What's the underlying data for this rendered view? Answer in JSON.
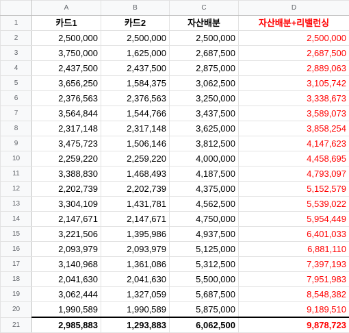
{
  "columns": [
    "A",
    "B",
    "C",
    "D"
  ],
  "headers": [
    "카드1",
    "카드2",
    "자산배분",
    "자산배분+리밸런싱"
  ],
  "colors": {
    "rebalance_text": "#ff0000",
    "grid_line": "#e2e2e2",
    "header_bg": "#f8f9fa"
  },
  "rows": [
    {
      "n": "2",
      "a": "2,500,000",
      "b": "2,500,000",
      "c": "2,500,000",
      "d": "2,500,000"
    },
    {
      "n": "3",
      "a": "3,750,000",
      "b": "1,625,000",
      "c": "2,687,500",
      "d": "2,687,500"
    },
    {
      "n": "4",
      "a": "2,437,500",
      "b": "2,437,500",
      "c": "2,875,000",
      "d": "2,889,063"
    },
    {
      "n": "5",
      "a": "3,656,250",
      "b": "1,584,375",
      "c": "3,062,500",
      "d": "3,105,742"
    },
    {
      "n": "6",
      "a": "2,376,563",
      "b": "2,376,563",
      "c": "3,250,000",
      "d": "3,338,673"
    },
    {
      "n": "7",
      "a": "3,564,844",
      "b": "1,544,766",
      "c": "3,437,500",
      "d": "3,589,073"
    },
    {
      "n": "8",
      "a": "2,317,148",
      "b": "2,317,148",
      "c": "3,625,000",
      "d": "3,858,254"
    },
    {
      "n": "9",
      "a": "3,475,723",
      "b": "1,506,146",
      "c": "3,812,500",
      "d": "4,147,623"
    },
    {
      "n": "10",
      "a": "2,259,220",
      "b": "2,259,220",
      "c": "4,000,000",
      "d": "4,458,695"
    },
    {
      "n": "11",
      "a": "3,388,830",
      "b": "1,468,493",
      "c": "4,187,500",
      "d": "4,793,097"
    },
    {
      "n": "12",
      "a": "2,202,739",
      "b": "2,202,739",
      "c": "4,375,000",
      "d": "5,152,579"
    },
    {
      "n": "13",
      "a": "3,304,109",
      "b": "1,431,781",
      "c": "4,562,500",
      "d": "5,539,022"
    },
    {
      "n": "14",
      "a": "2,147,671",
      "b": "2,147,671",
      "c": "4,750,000",
      "d": "5,954,449"
    },
    {
      "n": "15",
      "a": "3,221,506",
      "b": "1,395,986",
      "c": "4,937,500",
      "d": "6,401,033"
    },
    {
      "n": "16",
      "a": "2,093,979",
      "b": "2,093,979",
      "c": "5,125,000",
      "d": "6,881,110"
    },
    {
      "n": "17",
      "a": "3,140,968",
      "b": "1,361,086",
      "c": "5,312,500",
      "d": "7,397,193"
    },
    {
      "n": "18",
      "a": "2,041,630",
      "b": "2,041,630",
      "c": "5,500,000",
      "d": "7,951,983"
    },
    {
      "n": "19",
      "a": "3,062,444",
      "b": "1,327,059",
      "c": "5,687,500",
      "d": "8,548,382"
    },
    {
      "n": "20",
      "a": "1,990,589",
      "b": "1,990,589",
      "c": "5,875,000",
      "d": "9,189,510"
    }
  ],
  "totals": {
    "n": "21",
    "a": "2,985,883",
    "b": "1,293,883",
    "c": "6,062,500",
    "d": "9,878,723"
  }
}
